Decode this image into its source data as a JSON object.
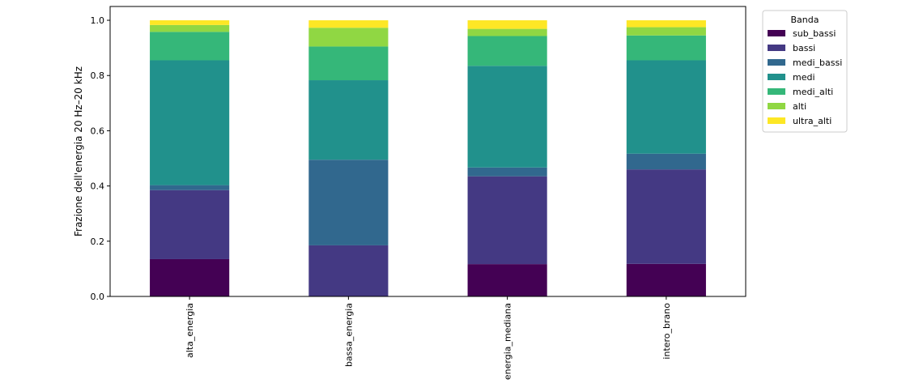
{
  "chart_data": {
    "type": "bar",
    "stacked": true,
    "title": "",
    "xlabel": "",
    "ylabel": "Frazione dell'energia 20 Hz–20 kHz",
    "ylim": [
      0,
      1.05
    ],
    "yticks": [
      "0.0",
      "0.2",
      "0.4",
      "0.6",
      "0.8",
      "1.0"
    ],
    "categories": [
      "alta_energia",
      "bassa_energia",
      "energia_mediana",
      "intero_brano"
    ],
    "legend": {
      "title": "Banda",
      "placement": "outside-top-right"
    },
    "series": [
      {
        "name": "sub_bassi",
        "color": "#440154",
        "values": [
          0.135,
          0.0,
          0.117,
          0.118
        ]
      },
      {
        "name": "bassi",
        "color": "#443983",
        "values": [
          0.25,
          0.185,
          0.318,
          0.342
        ]
      },
      {
        "name": "medi_bassi",
        "color": "#31688e",
        "values": [
          0.018,
          0.31,
          0.032,
          0.057
        ]
      },
      {
        "name": "medi",
        "color": "#21918c",
        "values": [
          0.452,
          0.288,
          0.368,
          0.338
        ]
      },
      {
        "name": "medi_alti",
        "color": "#35b779",
        "values": [
          0.103,
          0.122,
          0.108,
          0.09
        ]
      },
      {
        "name": "alti",
        "color": "#90d743",
        "values": [
          0.025,
          0.068,
          0.026,
          0.03
        ]
      },
      {
        "name": "ultra_alti",
        "color": "#fde725",
        "values": [
          0.017,
          0.027,
          0.031,
          0.025
        ]
      }
    ]
  }
}
